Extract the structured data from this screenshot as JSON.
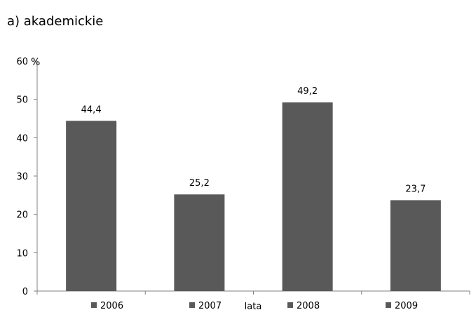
{
  "chart_data": {
    "type": "bar",
    "title": "a) akademickie",
    "categories": [
      "2006",
      "2007",
      "2008",
      "2009"
    ],
    "values": [
      44.4,
      25.2,
      49.2,
      23.7
    ],
    "value_labels": [
      "44,4",
      "25,2",
      "49,2",
      "23,7"
    ],
    "ylabel": "%",
    "xlabel": "lata",
    "ylim": [
      0,
      60
    ],
    "yticks": [
      0,
      10,
      20,
      30,
      40,
      50,
      60
    ],
    "ytick_labels": [
      "0",
      "10",
      "20",
      "30",
      "40",
      "50",
      "60"
    ],
    "grid": false,
    "legend": {
      "placement": "bottom",
      "entries": [
        "2006",
        "2007",
        "2008",
        "2009"
      ]
    },
    "colors": {
      "bar": "#595959",
      "axis": "#808080"
    }
  }
}
